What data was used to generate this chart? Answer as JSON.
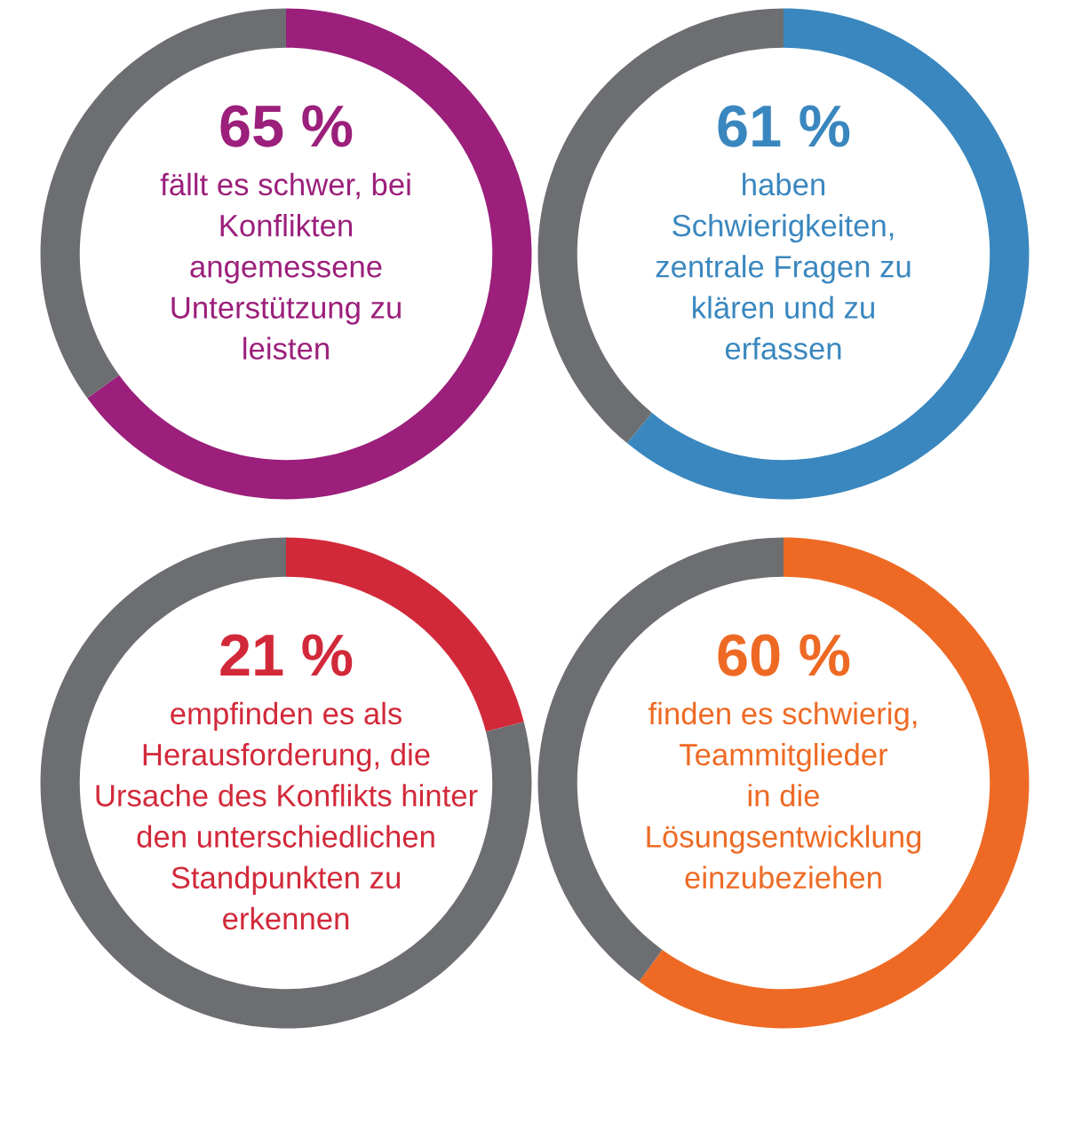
{
  "chart_data": [
    {
      "type": "donut",
      "categories": [
        null,
        null
      ],
      "values": [
        65,
        35
      ],
      "colors": [
        "#9b1f7b",
        "#6d6e71"
      ],
      "value_labels": [
        "65 %",
        null
      ],
      "annotations": [
        "fällt es schwer, bei\nKonflikten\nangemessene\nUnterstützung zu\nleisten"
      ]
    },
    {
      "type": "donut",
      "categories": [
        null,
        null
      ],
      "values": [
        61,
        39
      ],
      "colors": [
        "#3a87bf",
        "#6d6e71"
      ],
      "value_labels": [
        "61 %",
        null
      ],
      "annotations": [
        "haben\nSchwierigkeiten,\nzentrale Fragen zu\nklären und zu\nerfassen"
      ]
    },
    {
      "type": "donut",
      "categories": [
        null,
        null
      ],
      "values": [
        21,
        79
      ],
      "colors": [
        "#d2293a",
        "#6d6e71"
      ],
      "value_labels": [
        "21 %",
        null
      ],
      "annotations": [
        "empfinden es als\nHerausforderung, die\nUrsache des Konflikts hinter\nden unterschiedlichen\nStandpunkten zu\nerkennen"
      ]
    },
    {
      "type": "donut",
      "categories": [
        null,
        null
      ],
      "values": [
        60,
        40
      ],
      "colors": [
        "#ee6a24",
        "#6d6e71"
      ],
      "value_labels": [
        "60 %",
        null
      ],
      "annotations": [
        "finden es schwierig,\nTeammitglieder\nin die\nLösungsentwicklung\neinzubeziehen"
      ]
    }
  ]
}
